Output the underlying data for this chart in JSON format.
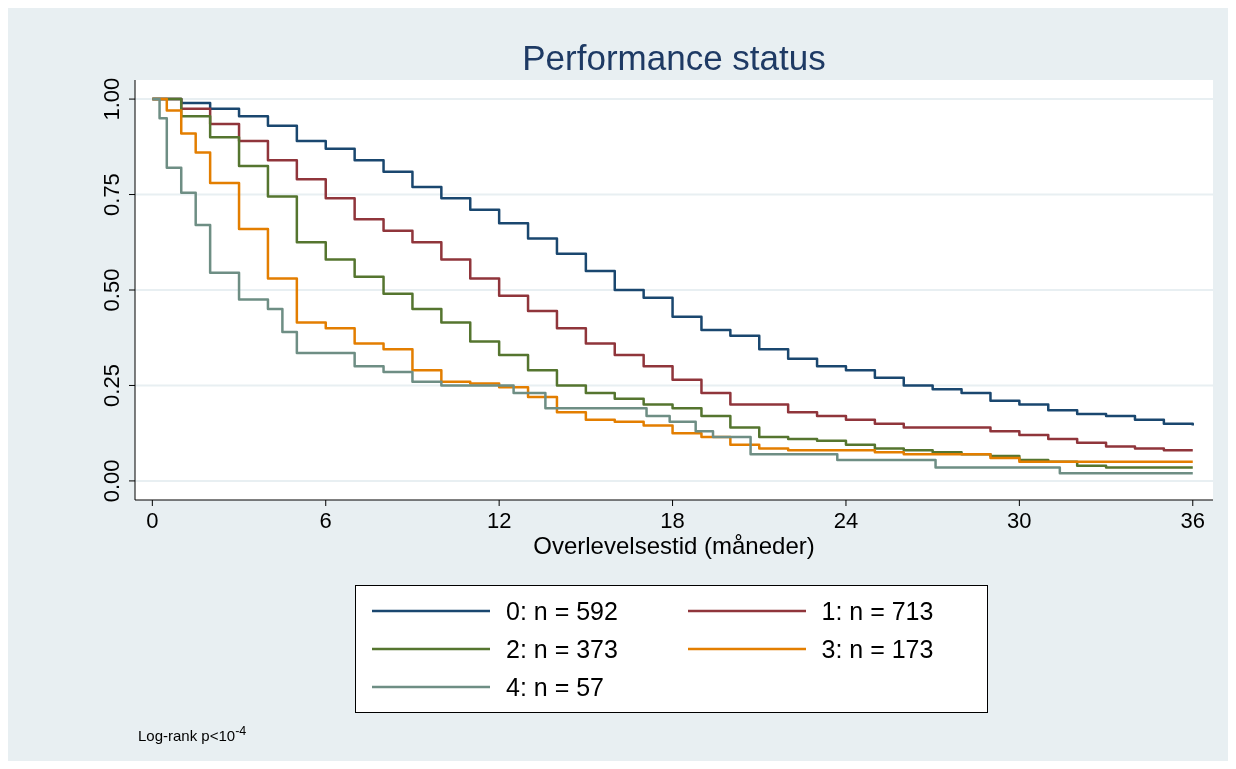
{
  "chart_data": {
    "type": "step",
    "title": "Performance status",
    "xlabel": "Overlevelsestid (måneder)",
    "annotations": [
      "Log-rank p<10$^{-4}$"
    ],
    "xlim": [
      -0.6,
      36.7
    ],
    "xticks": [
      0,
      6,
      12,
      18,
      24,
      30,
      36
    ],
    "ylim": [
      -0.05,
      1.05
    ],
    "yticks": [
      {
        "value": 0,
        "label": "0.00"
      },
      {
        "value": 0.25,
        "label": "0.25"
      },
      {
        "value": 0.5,
        "label": "0.50"
      },
      {
        "value": 0.75,
        "label": "0.75"
      },
      {
        "value": 1,
        "label": "1.00"
      }
    ],
    "grid": "y",
    "legend": "bottom",
    "line_style": "solid",
    "series": [
      {
        "name": "0: n = 592",
        "color": "#1a476f",
        "x": [
          0,
          1,
          2,
          3,
          4,
          5,
          6,
          7,
          8,
          9,
          10,
          11,
          12,
          13,
          14,
          15,
          16,
          17,
          18,
          19,
          20,
          21,
          22,
          23,
          24,
          25,
          26,
          27,
          28,
          29,
          30,
          31,
          32,
          33,
          34,
          35,
          36
        ],
        "values": [
          1,
          0.99,
          0.975,
          0.955,
          0.93,
          0.89,
          0.87,
          0.84,
          0.81,
          0.77,
          0.74,
          0.71,
          0.675,
          0.635,
          0.595,
          0.55,
          0.5,
          0.48,
          0.43,
          0.395,
          0.38,
          0.345,
          0.32,
          0.3,
          0.29,
          0.27,
          0.25,
          0.24,
          0.23,
          0.21,
          0.2,
          0.185,
          0.175,
          0.17,
          0.16,
          0.15,
          0.145
        ]
      },
      {
        "name": "1: n = 713",
        "color": "#90353b",
        "x": [
          0,
          1,
          2,
          3,
          4,
          5,
          6,
          7,
          8,
          9,
          10,
          11,
          12,
          13,
          14,
          15,
          16,
          17,
          18,
          19,
          20,
          21,
          22,
          23,
          24,
          25,
          26,
          27,
          28,
          29,
          30,
          31,
          32,
          33,
          34,
          35,
          36
        ],
        "values": [
          1,
          0.975,
          0.935,
          0.89,
          0.84,
          0.79,
          0.74,
          0.685,
          0.655,
          0.625,
          0.58,
          0.53,
          0.485,
          0.445,
          0.4,
          0.36,
          0.33,
          0.3,
          0.265,
          0.23,
          0.2,
          0.2,
          0.18,
          0.17,
          0.16,
          0.15,
          0.14,
          0.14,
          0.14,
          0.13,
          0.12,
          0.11,
          0.1,
          0.09,
          0.085,
          0.08,
          0.08
        ]
      },
      {
        "name": "2: n = 373",
        "color": "#55752f",
        "x": [
          0,
          1,
          2,
          3,
          4,
          5,
          6,
          7,
          8,
          9,
          10,
          11,
          12,
          13,
          14,
          15,
          16,
          17,
          18,
          19,
          20,
          21,
          22,
          23,
          24,
          25,
          26,
          27,
          28,
          29,
          30,
          31,
          32,
          33,
          34,
          35,
          36
        ],
        "values": [
          1,
          0.955,
          0.9,
          0.825,
          0.745,
          0.625,
          0.58,
          0.535,
          0.49,
          0.45,
          0.415,
          0.365,
          0.33,
          0.29,
          0.25,
          0.23,
          0.215,
          0.2,
          0.19,
          0.17,
          0.14,
          0.115,
          0.11,
          0.105,
          0.095,
          0.085,
          0.08,
          0.075,
          0.07,
          0.065,
          0.055,
          0.05,
          0.04,
          0.035,
          0.035,
          0.035,
          0.035
        ]
      },
      {
        "name": "3: n = 173",
        "color": "#e37e00",
        "x": [
          0,
          0.5,
          1,
          1.5,
          2,
          3,
          4,
          5,
          6,
          7,
          8,
          9,
          10,
          11,
          12,
          13,
          14,
          15,
          16,
          17,
          18,
          19,
          20,
          21,
          22,
          24,
          25,
          26,
          27,
          29,
          30,
          36
        ],
        "values": [
          1,
          0.97,
          0.91,
          0.86,
          0.78,
          0.66,
          0.53,
          0.415,
          0.4,
          0.36,
          0.345,
          0.29,
          0.26,
          0.255,
          0.245,
          0.22,
          0.18,
          0.16,
          0.155,
          0.145,
          0.125,
          0.115,
          0.095,
          0.085,
          0.08,
          0.08,
          0.075,
          0.07,
          0.07,
          0.06,
          0.05,
          0.05
        ]
      },
      {
        "name": "4: n = 57",
        "color": "#6e8e84",
        "x": [
          0,
          0.25,
          0.5,
          1,
          1.5,
          2,
          3,
          4,
          4.5,
          5,
          7,
          8,
          9,
          10,
          12.5,
          13.6,
          17.1,
          17.9,
          18.8,
          19.4,
          20.7,
          23.7,
          27.1,
          31.4,
          36
        ],
        "values": [
          1,
          0.95,
          0.82,
          0.755,
          0.67,
          0.545,
          0.475,
          0.45,
          0.39,
          0.335,
          0.3,
          0.285,
          0.26,
          0.25,
          0.23,
          0.19,
          0.17,
          0.155,
          0.13,
          0.115,
          0.07,
          0.055,
          0.035,
          0.02,
          0.02
        ]
      }
    ]
  }
}
